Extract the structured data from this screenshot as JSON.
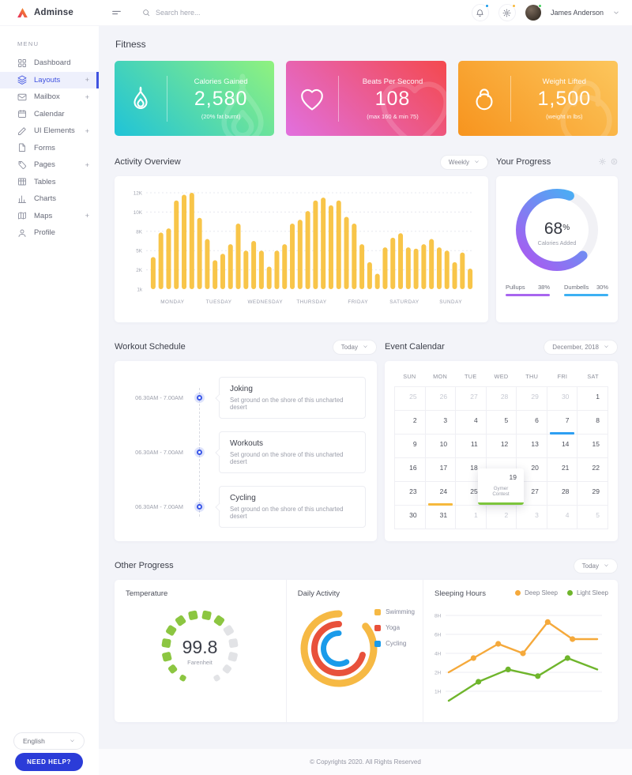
{
  "topbar": {
    "logo_text": "Adminse",
    "search_placeholder": "Search here...",
    "user_name": "James Anderson"
  },
  "sidebar": {
    "menu_label": "MENU",
    "items": [
      {
        "label": "Dashboard",
        "icon": "dashboard",
        "expandable": false,
        "active": false
      },
      {
        "label": "Layouts",
        "icon": "layouts",
        "expandable": true,
        "active": true
      },
      {
        "label": "Mailbox",
        "icon": "mailbox",
        "expandable": true,
        "active": false
      },
      {
        "label": "Calendar",
        "icon": "calendar",
        "expandable": false,
        "active": false
      },
      {
        "label": "UI Elements",
        "icon": "ui-elements",
        "expandable": true,
        "active": false
      },
      {
        "label": "Forms",
        "icon": "forms",
        "expandable": false,
        "active": false
      },
      {
        "label": "Pages",
        "icon": "pages",
        "expandable": true,
        "active": false
      },
      {
        "label": "Tables",
        "icon": "tables",
        "expandable": false,
        "active": false
      },
      {
        "label": "Charts",
        "icon": "charts",
        "expandable": false,
        "active": false
      },
      {
        "label": "Maps",
        "icon": "maps",
        "expandable": true,
        "active": false
      },
      {
        "label": "Profile",
        "icon": "profile",
        "expandable": false,
        "active": false
      }
    ],
    "language": "English",
    "help_button": "NEED HELP?"
  },
  "page": {
    "title": "Fitness"
  },
  "stat_cards": [
    {
      "label": "Calories Gained",
      "value": "2,580",
      "sub": "(20% fat burnt)",
      "icon": "flame",
      "gradient": [
        "#1fc3d8",
        "#90f27e"
      ]
    },
    {
      "label": "Beats Per Second",
      "value": "108",
      "sub": "(max 160 & min 75)",
      "icon": "heart",
      "gradient": [
        "#e170df",
        "#f4494e"
      ]
    },
    {
      "label": "Weight Lifted",
      "value": "1,500",
      "sub": "(weight in lbs)",
      "icon": "kettlebell",
      "gradient": [
        "#f7941e",
        "#fcc65c"
      ]
    }
  ],
  "sections": {
    "activity": {
      "title": "Activity Overview",
      "filter": "Weekly"
    },
    "progress": {
      "title": "Your Progress"
    },
    "workout": {
      "title": "Workout Schedule",
      "filter": "Today"
    },
    "calendar": {
      "title": "Event Calendar",
      "filter": "December, 2018"
    },
    "other": {
      "title": "Other Progress",
      "filter": "Today"
    }
  },
  "workout_items": [
    {
      "time": "06.30AM - 7.00AM",
      "title": "Joking",
      "desc": "Set ground on the shore of this uncharted desert"
    },
    {
      "time": "06.30AM - 7.00AM",
      "title": "Workouts",
      "desc": "Set ground on the shore of this uncharted desert"
    },
    {
      "time": "06.30AM - 7.00AM",
      "title": "Cycling",
      "desc": "Set ground on the shore of this uncharted desert"
    }
  ],
  "calendar_data": {
    "day_headers": [
      "SUN",
      "MON",
      "TUE",
      "WED",
      "THU",
      "FRI",
      "SAT"
    ],
    "weeks": [
      [
        {
          "d": "25",
          "muted": true
        },
        {
          "d": "26",
          "muted": true
        },
        {
          "d": "27",
          "muted": true
        },
        {
          "d": "28",
          "muted": true
        },
        {
          "d": "29",
          "muted": true
        },
        {
          "d": "30",
          "muted": true
        },
        {
          "d": "1"
        }
      ],
      [
        {
          "d": "2"
        },
        {
          "d": "3"
        },
        {
          "d": "4"
        },
        {
          "d": "5"
        },
        {
          "d": "6"
        },
        {
          "d": "7",
          "event": "#2e9ff2"
        },
        {
          "d": "8"
        }
      ],
      [
        {
          "d": "9"
        },
        {
          "d": "10"
        },
        {
          "d": "11"
        },
        {
          "d": "12"
        },
        {
          "d": "13"
        },
        {
          "d": "14"
        },
        {
          "d": "15"
        }
      ],
      [
        {
          "d": "16"
        },
        {
          "d": "17"
        },
        {
          "d": "18"
        },
        {
          "d": "19",
          "covered": true
        },
        {
          "d": "20"
        },
        {
          "d": "21"
        },
        {
          "d": "22"
        }
      ],
      [
        {
          "d": "23"
        },
        {
          "d": "24",
          "event": "#f6b93d"
        },
        {
          "d": "25"
        },
        {
          "d": "26"
        },
        {
          "d": "27"
        },
        {
          "d": "28"
        },
        {
          "d": "29"
        }
      ],
      [
        {
          "d": "30"
        },
        {
          "d": "31"
        },
        {
          "d": "1",
          "muted": true
        },
        {
          "d": "2",
          "muted": true
        },
        {
          "d": "3",
          "muted": true
        },
        {
          "d": "4",
          "muted": true
        },
        {
          "d": "5",
          "muted": true
        }
      ]
    ],
    "popup": {
      "day": "19",
      "label": "Gymer Contest",
      "color": "#7cc53c"
    }
  },
  "chart_data": [
    {
      "id": "activity-overview",
      "type": "bar",
      "title": "Activity Overview",
      "bar_color": "#f8c549",
      "yticks_bottom_to_top": [
        "1k",
        "2K",
        "5K",
        "8K",
        "10K",
        "12K"
      ],
      "categories": [
        "MONDAY",
        "TUESDAY",
        "WEDNESDAY",
        "THURSDAY",
        "FRIDAY",
        "SATURDAY",
        "SUNDAY"
      ],
      "values_k": [
        4,
        7.8,
        8.3,
        11.2,
        11.8,
        12,
        9.4,
        6.8,
        3.5,
        4.5,
        6,
        8.8,
        5,
        6.5,
        5,
        2.5,
        5,
        6,
        8.8,
        9.2,
        10.1,
        11.2,
        11.5,
        10.7,
        11.2,
        9.5,
        8.8,
        6,
        3.2,
        1.8,
        5.5,
        7,
        7.7,
        5.5,
        5.3,
        6,
        6.8,
        5.5,
        5,
        3.2,
        4.7,
        2.2
      ]
    },
    {
      "id": "your-progress",
      "type": "donut",
      "percent": 68,
      "percent_suffix": "%",
      "center_label": "Calories Added",
      "gradient": [
        "#45b2f4",
        "#a55ef1"
      ],
      "legend": [
        {
          "label": "Pullups",
          "value": "38%",
          "color": "#a866ef"
        },
        {
          "label": "Dumbells",
          "value": "30%",
          "color": "#3cb0f3"
        }
      ]
    },
    {
      "id": "temperature",
      "type": "gauge",
      "title": "Temperature",
      "value": "99.8",
      "unit": "Farenheit",
      "segments_total": 14,
      "segments_filled": 9,
      "filled_color": "#8cc641",
      "empty_color": "#e2e3e6"
    },
    {
      "id": "daily-activity",
      "type": "rings",
      "title": "Daily Activity",
      "rings": [
        {
          "label": "Swimming",
          "color": "#f6b944",
          "sweep_deg": 310
        },
        {
          "label": "Yoga",
          "color": "#e8513b",
          "sweep_deg": 255
        },
        {
          "label": "Cycling",
          "color": "#1a9bea",
          "sweep_deg": 210
        }
      ]
    },
    {
      "id": "sleeping-hours",
      "type": "line",
      "title": "Sleeping Hours",
      "yticks_top_to_bottom": [
        "8H",
        "6H",
        "4H",
        "2H",
        "1H"
      ],
      "series": [
        {
          "name": "Deep Sleep",
          "color": "#f5a93b",
          "values_h": [
            2,
            3.5,
            5,
            4,
            7.3,
            5.5,
            5.5
          ]
        },
        {
          "name": "Light Sleep",
          "color": "#6fb52c",
          "values_h": [
            0.5,
            1.5,
            2.3,
            1.8,
            3.5,
            2.3
          ]
        }
      ]
    }
  ],
  "footer": {
    "text": "© Copyrights 2020. All Rights Reserved"
  }
}
